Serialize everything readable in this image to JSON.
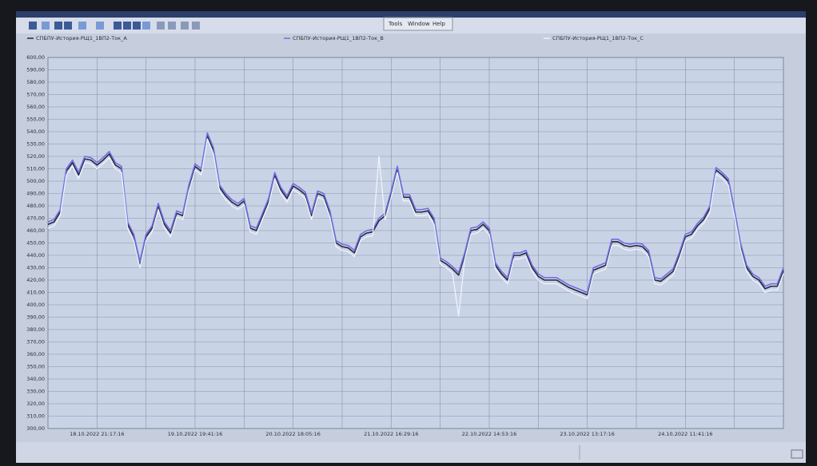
{
  "menu": [
    "Tools",
    "Window",
    "Help"
  ],
  "chart_data": {
    "type": "line",
    "categories": [
      null,
      null,
      null,
      null,
      null,
      null,
      null,
      null,
      "18.10.2022 21:17:16",
      null,
      null,
      null,
      null,
      null,
      null,
      null,
      null,
      null,
      null,
      null,
      null,
      null,
      null,
      null,
      "19.10.2022 19:41:16",
      null,
      null,
      null,
      null,
      null,
      null,
      null,
      null,
      null,
      null,
      null,
      null,
      null,
      null,
      null,
      "20.10.2022 18:05:16",
      null,
      null,
      null,
      null,
      null,
      null,
      null,
      null,
      null,
      null,
      null,
      null,
      null,
      null,
      null,
      "21.10.2022 16:29:16",
      null,
      null,
      null,
      null,
      null,
      null,
      null,
      null,
      null,
      null,
      null,
      null,
      null,
      null,
      null,
      "22.10.2022 14:53:16",
      null,
      null,
      null,
      null,
      null,
      null,
      null,
      null,
      null,
      null,
      null,
      null,
      null,
      null,
      null,
      "23.10.2022 13:17:16",
      null,
      null,
      null,
      null,
      null,
      null,
      null,
      null,
      null,
      null,
      null,
      null,
      null,
      null,
      null,
      "24.10.2022 11:41:16",
      null,
      null,
      null,
      null,
      null,
      null,
      null,
      null,
      null,
      null,
      null,
      null,
      null,
      null,
      null,
      null
    ],
    "series": [
      {
        "name": "СПБПУ-История-РЩ1_1ВП2-Ток_A",
        "color": "#2a2440",
        "values": [
          465,
          467,
          475,
          508,
          515,
          505,
          518,
          517,
          513,
          517,
          522,
          513,
          510,
          465,
          455,
          433,
          455,
          462,
          480,
          465,
          458,
          474,
          472,
          495,
          512,
          508,
          537,
          525,
          495,
          488,
          483,
          480,
          484,
          462,
          460,
          472,
          484,
          505,
          493,
          486,
          496,
          493,
          489,
          472,
          490,
          488,
          474,
          450,
          447,
          446,
          442,
          455,
          458,
          459,
          468,
          472,
          490,
          510,
          487,
          487,
          475,
          475,
          476,
          468,
          436,
          433,
          429,
          424,
          440,
          460,
          461,
          465,
          460,
          432,
          425,
          420,
          440,
          440,
          442,
          430,
          423,
          420,
          420,
          420,
          417,
          414,
          412,
          410,
          408,
          428,
          430,
          432,
          451,
          451,
          448,
          447,
          448,
          447,
          442,
          420,
          419,
          423,
          427,
          440,
          455,
          457,
          464,
          469,
          478,
          509,
          505,
          500,
          475,
          448,
          430,
          423,
          420,
          413,
          415,
          415,
          428
        ]
      },
      {
        "name": "СПБПУ-История-РЩ1_1ВП2-Ток_B",
        "color": "#6f6fe0",
        "values": [
          467,
          469,
          477,
          510,
          517,
          507,
          520,
          519,
          515,
          519,
          524,
          515,
          512,
          467,
          457,
          435,
          457,
          464,
          482,
          467,
          460,
          476,
          474,
          497,
          514,
          510,
          539,
          527,
          497,
          490,
          485,
          482,
          486,
          464,
          462,
          474,
          486,
          507,
          495,
          488,
          498,
          495,
          491,
          474,
          492,
          490,
          476,
          452,
          449,
          448,
          444,
          457,
          460,
          461,
          470,
          474,
          492,
          512,
          489,
          489,
          477,
          477,
          478,
          470,
          438,
          435,
          431,
          426,
          442,
          462,
          463,
          467,
          462,
          434,
          427,
          422,
          442,
          442,
          444,
          432,
          425,
          422,
          422,
          422,
          419,
          416,
          414,
          412,
          410,
          430,
          432,
          434,
          453,
          453,
          450,
          449,
          450,
          449,
          444,
          422,
          421,
          425,
          429,
          442,
          457,
          459,
          466,
          471,
          480,
          511,
          507,
          502,
          477,
          450,
          432,
          425,
          422,
          415,
          417,
          417,
          430
        ]
      },
      {
        "name": "СПБПУ-История-РЩ1_1ВП2-Ток_C",
        "color": "#eef4fb",
        "values": [
          462,
          464,
          472,
          505,
          512,
          502,
          515,
          514,
          510,
          514,
          519,
          510,
          507,
          462,
          452,
          430,
          452,
          459,
          477,
          462,
          455,
          471,
          469,
          492,
          509,
          505,
          534,
          522,
          492,
          485,
          480,
          477,
          481,
          459,
          457,
          469,
          481,
          502,
          490,
          483,
          493,
          490,
          486,
          469,
          487,
          485,
          471,
          447,
          444,
          443,
          439,
          452,
          455,
          456,
          520,
          469,
          487,
          507,
          484,
          484,
          472,
          472,
          473,
          465,
          433,
          430,
          426,
          391,
          437,
          457,
          458,
          462,
          457,
          429,
          422,
          417,
          437,
          437,
          439,
          427,
          420,
          417,
          417,
          417,
          414,
          411,
          409,
          407,
          405,
          425,
          427,
          429,
          448,
          448,
          445,
          444,
          445,
          444,
          439,
          417,
          416,
          420,
          424,
          437,
          452,
          454,
          461,
          466,
          475,
          506,
          502,
          497,
          472,
          445,
          427,
          420,
          417,
          410,
          412,
          412,
          425
        ]
      }
    ],
    "ylim": [
      300,
      600
    ],
    "yticks": [
      {
        "value": 300,
        "label": "300,00"
      },
      {
        "value": 310,
        "label": "310,00"
      },
      {
        "value": 320,
        "label": "320,00"
      },
      {
        "value": 330,
        "label": "330,00"
      },
      {
        "value": 340,
        "label": "340,00"
      },
      {
        "value": 350,
        "label": "350,00"
      },
      {
        "value": 360,
        "label": "360,00"
      },
      {
        "value": 370,
        "label": "370,00"
      },
      {
        "value": 380,
        "label": "380,00"
      },
      {
        "value": 390,
        "label": "390,00"
      },
      {
        "value": 400,
        "label": "400,00"
      },
      {
        "value": 410,
        "label": "410,00"
      },
      {
        "value": 420,
        "label": "420,00"
      },
      {
        "value": 430,
        "label": "430,00"
      },
      {
        "value": 440,
        "label": "440,00"
      },
      {
        "value": 450,
        "label": "450,00"
      },
      {
        "value": 460,
        "label": "460,00"
      },
      {
        "value": 470,
        "label": "470,00"
      },
      {
        "value": 480,
        "label": "480,00"
      },
      {
        "value": 490,
        "label": "490,00"
      },
      {
        "value": 500,
        "label": "500,00"
      },
      {
        "value": 510,
        "label": "510,00"
      },
      {
        "value": 520,
        "label": "520,00"
      },
      {
        "value": 530,
        "label": "530,00"
      },
      {
        "value": 540,
        "label": "540,00"
      },
      {
        "value": 550,
        "label": "550,00"
      },
      {
        "value": 560,
        "label": "560,00"
      },
      {
        "value": 570,
        "label": "570,00"
      },
      {
        "value": 580,
        "label": "580,00"
      },
      {
        "value": 590,
        "label": "590,00"
      },
      {
        "value": 600,
        "label": "600,00"
      }
    ],
    "grid": true
  }
}
